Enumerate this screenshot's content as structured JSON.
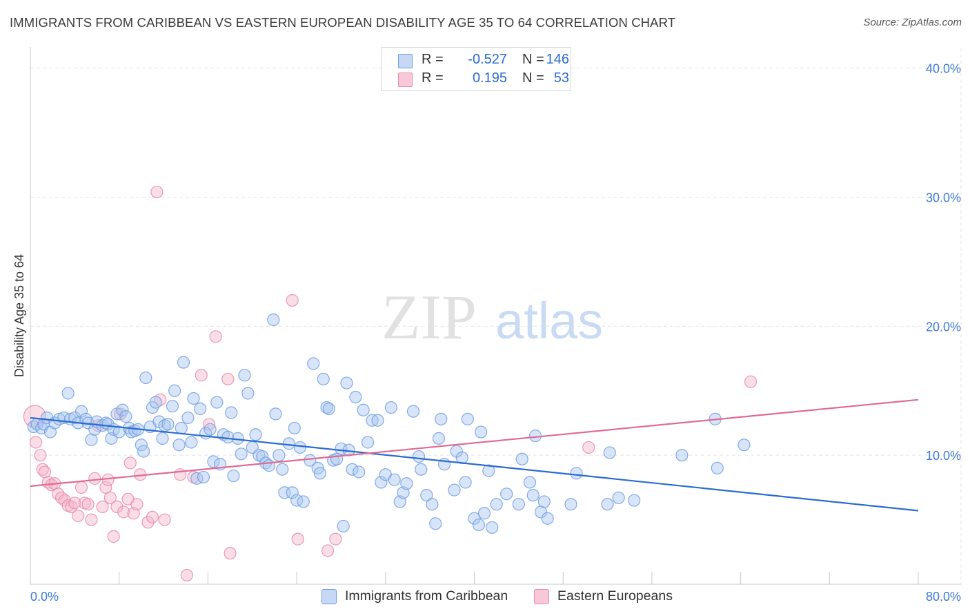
{
  "title": "IMMIGRANTS FROM CARIBBEAN VS EASTERN EUROPEAN DISABILITY AGE 35 TO 64 CORRELATION CHART",
  "source": "Source: ZipAtlas.com",
  "watermark": {
    "part1": "ZIP",
    "part2": "atlas"
  },
  "legend": {
    "series1": {
      "r_label": "R =",
      "r_value": "-0.527",
      "n_label": "N =",
      "n_value": "146"
    },
    "series2": {
      "r_label": "R =",
      "r_value": "0.195",
      "n_label": "N =",
      "n_value": "53"
    }
  },
  "colors": {
    "blue_fill": "#a9c6ef",
    "blue_stroke": "#6e9fe0",
    "blue_line": "#2a6bd1",
    "pink_fill": "#f5b5ca",
    "pink_stroke": "#e88aab",
    "pink_line": "#e06a94",
    "tick_text": "#3d7bd6",
    "grid": "#e3e3e3"
  },
  "chart_data": {
    "type": "scatter",
    "title": "IMMIGRANTS FROM CARIBBEAN VS EASTERN EUROPEAN DISABILITY AGE 35 TO 64 CORRELATION CHART",
    "xlabel": "",
    "ylabel": "Disability Age 35 to 64",
    "xlim": [
      0,
      80
    ],
    "ylim": [
      0,
      41
    ],
    "x_tick_labels": [
      {
        "value": 0,
        "label": "0.0%"
      },
      {
        "value": 80,
        "label": "80.0%"
      }
    ],
    "y_tick_labels": [
      {
        "value": 10,
        "label": "10.0%"
      },
      {
        "value": 20,
        "label": "20.0%"
      },
      {
        "value": 30,
        "label": "30.0%"
      },
      {
        "value": 40,
        "label": "40.0%"
      }
    ],
    "x_minor_ticks": [
      8,
      16,
      24,
      32,
      40,
      48,
      56,
      64,
      72,
      80
    ],
    "legend_position": "top-center",
    "series": [
      {
        "name": "Immigrants from Caribbean",
        "color": "#6e9fe0",
        "r": -0.527,
        "n": 146,
        "trendline": {
          "x": [
            0,
            80
          ],
          "y": [
            12.9,
            5.7
          ]
        },
        "points": [
          [
            0.3,
            12.2
          ],
          [
            0.6,
            12.4
          ],
          [
            1.0,
            12.1
          ],
          [
            1.2,
            12.4
          ],
          [
            1.5,
            12.9
          ],
          [
            1.8,
            11.8
          ],
          [
            2.2,
            12.5
          ],
          [
            2.6,
            12.8
          ],
          [
            3.0,
            12.9
          ],
          [
            3.4,
            14.8
          ],
          [
            3.6,
            12.8
          ],
          [
            4.0,
            12.9
          ],
          [
            4.3,
            12.5
          ],
          [
            4.6,
            13.4
          ],
          [
            5.0,
            12.8
          ],
          [
            5.2,
            12.5
          ],
          [
            5.5,
            11.2
          ],
          [
            5.8,
            12.0
          ],
          [
            6.0,
            12.6
          ],
          [
            6.5,
            12.3
          ],
          [
            6.8,
            12.5
          ],
          [
            7.0,
            12.4
          ],
          [
            7.3,
            11.3
          ],
          [
            7.5,
            12.0
          ],
          [
            7.8,
            13.2
          ],
          [
            8.0,
            11.8
          ],
          [
            8.3,
            13.5
          ],
          [
            8.6,
            13.0
          ],
          [
            8.9,
            12.1
          ],
          [
            9.1,
            11.8
          ],
          [
            9.4,
            11.9
          ],
          [
            9.7,
            12.0
          ],
          [
            10.0,
            10.8
          ],
          [
            10.2,
            10.3
          ],
          [
            10.4,
            16.0
          ],
          [
            10.8,
            12.2
          ],
          [
            11.0,
            13.7
          ],
          [
            11.3,
            14.1
          ],
          [
            11.6,
            12.6
          ],
          [
            11.9,
            11.3
          ],
          [
            12.1,
            12.3
          ],
          [
            12.4,
            12.4
          ],
          [
            12.8,
            13.8
          ],
          [
            13.0,
            15.0
          ],
          [
            13.4,
            10.8
          ],
          [
            13.6,
            12.1
          ],
          [
            13.8,
            17.2
          ],
          [
            14.2,
            12.9
          ],
          [
            14.5,
            11.0
          ],
          [
            14.7,
            14.4
          ],
          [
            15.0,
            8.2
          ],
          [
            15.3,
            13.6
          ],
          [
            15.6,
            8.3
          ],
          [
            15.8,
            11.7
          ],
          [
            16.2,
            12.0
          ],
          [
            16.5,
            9.5
          ],
          [
            16.8,
            14.1
          ],
          [
            17.1,
            9.3
          ],
          [
            17.4,
            11.6
          ],
          [
            17.8,
            11.4
          ],
          [
            18.1,
            13.3
          ],
          [
            18.3,
            8.4
          ],
          [
            18.7,
            11.3
          ],
          [
            19.0,
            10.1
          ],
          [
            19.3,
            16.2
          ],
          [
            19.6,
            14.8
          ],
          [
            20.0,
            10.6
          ],
          [
            20.3,
            11.6
          ],
          [
            20.6,
            10.0
          ],
          [
            20.9,
            9.9
          ],
          [
            21.2,
            9.4
          ],
          [
            21.5,
            9.2
          ],
          [
            21.9,
            20.5
          ],
          [
            22.1,
            13.2
          ],
          [
            22.4,
            10.0
          ],
          [
            22.7,
            8.9
          ],
          [
            22.9,
            7.1
          ],
          [
            23.3,
            10.9
          ],
          [
            23.6,
            7.1
          ],
          [
            23.8,
            12.1
          ],
          [
            24.0,
            6.5
          ],
          [
            24.3,
            10.6
          ],
          [
            24.6,
            6.4
          ],
          [
            25.2,
            9.6
          ],
          [
            25.5,
            17.1
          ],
          [
            25.9,
            9.0
          ],
          [
            26.1,
            8.6
          ],
          [
            26.4,
            15.9
          ],
          [
            26.7,
            13.7
          ],
          [
            26.9,
            13.6
          ],
          [
            27.3,
            9.6
          ],
          [
            27.6,
            9.7
          ],
          [
            28.0,
            10.5
          ],
          [
            28.2,
            4.5
          ],
          [
            28.5,
            15.6
          ],
          [
            28.7,
            10.4
          ],
          [
            29.0,
            8.9
          ],
          [
            29.3,
            14.5
          ],
          [
            29.6,
            8.7
          ],
          [
            30.0,
            13.5
          ],
          [
            30.4,
            11.0
          ],
          [
            30.8,
            12.7
          ],
          [
            31.3,
            12.7
          ],
          [
            31.6,
            7.9
          ],
          [
            32.0,
            8.5
          ],
          [
            32.5,
            13.7
          ],
          [
            32.8,
            8.1
          ],
          [
            33.3,
            6.4
          ],
          [
            33.6,
            7.1
          ],
          [
            33.9,
            7.8
          ],
          [
            34.5,
            13.4
          ],
          [
            35.0,
            9.9
          ],
          [
            35.2,
            8.9
          ],
          [
            35.7,
            6.9
          ],
          [
            36.2,
            6.2
          ],
          [
            36.5,
            4.7
          ],
          [
            36.8,
            11.3
          ],
          [
            37.0,
            12.8
          ],
          [
            37.3,
            9.3
          ],
          [
            38.2,
            7.3
          ],
          [
            38.4,
            10.3
          ],
          [
            38.9,
            9.8
          ],
          [
            39.2,
            7.9
          ],
          [
            39.4,
            12.8
          ],
          [
            40.0,
            5.1
          ],
          [
            40.4,
            4.6
          ],
          [
            40.6,
            11.8
          ],
          [
            40.9,
            5.5
          ],
          [
            41.3,
            8.8
          ],
          [
            41.6,
            4.4
          ],
          [
            42.0,
            6.2
          ],
          [
            42.9,
            7.0
          ],
          [
            44.0,
            6.2
          ],
          [
            44.3,
            9.7
          ],
          [
            45.0,
            7.9
          ],
          [
            45.3,
            6.9
          ],
          [
            45.5,
            11.5
          ],
          [
            46.0,
            5.6
          ],
          [
            46.3,
            6.4
          ],
          [
            46.6,
            5.1
          ],
          [
            48.7,
            6.2
          ],
          [
            49.2,
            8.6
          ],
          [
            52.0,
            6.2
          ],
          [
            52.2,
            10.2
          ],
          [
            53.0,
            6.7
          ],
          [
            54.4,
            6.5
          ],
          [
            58.7,
            10.0
          ],
          [
            61.7,
            12.8
          ],
          [
            61.9,
            9.0
          ],
          [
            64.3,
            10.8
          ]
        ]
      },
      {
        "name": "Eastern Europeans",
        "color": "#e88aab",
        "r": 0.195,
        "n": 53,
        "trendline": {
          "x": [
            0,
            80
          ],
          "y": [
            7.6,
            14.3
          ]
        },
        "points": [
          [
            0.4,
            13.0
          ],
          [
            0.5,
            11.0
          ],
          [
            0.9,
            10.0
          ],
          [
            1.1,
            8.9
          ],
          [
            1.3,
            8.7
          ],
          [
            1.6,
            7.9
          ],
          [
            1.9,
            7.7
          ],
          [
            2.2,
            7.8
          ],
          [
            2.5,
            7.0
          ],
          [
            2.8,
            6.7
          ],
          [
            3.1,
            6.5
          ],
          [
            3.4,
            6.1
          ],
          [
            3.7,
            6.0
          ],
          [
            4.0,
            6.3
          ],
          [
            4.3,
            5.3
          ],
          [
            4.6,
            7.5
          ],
          [
            4.9,
            6.3
          ],
          [
            5.2,
            6.2
          ],
          [
            5.5,
            5.0
          ],
          [
            5.8,
            8.2
          ],
          [
            6.1,
            12.3
          ],
          [
            6.5,
            6.0
          ],
          [
            6.8,
            7.5
          ],
          [
            7.0,
            8.1
          ],
          [
            7.2,
            6.7
          ],
          [
            7.5,
            3.7
          ],
          [
            7.8,
            6.0
          ],
          [
            8.1,
            13.2
          ],
          [
            8.4,
            5.6
          ],
          [
            8.8,
            6.6
          ],
          [
            9.0,
            9.4
          ],
          [
            9.3,
            5.5
          ],
          [
            9.6,
            6.2
          ],
          [
            9.9,
            8.5
          ],
          [
            10.6,
            4.8
          ],
          [
            11.0,
            5.2
          ],
          [
            11.4,
            30.4
          ],
          [
            11.7,
            14.3
          ],
          [
            12.1,
            5.0
          ],
          [
            13.5,
            8.5
          ],
          [
            14.1,
            0.7
          ],
          [
            14.7,
            8.3
          ],
          [
            15.4,
            16.2
          ],
          [
            16.1,
            12.4
          ],
          [
            16.7,
            19.2
          ],
          [
            17.8,
            15.9
          ],
          [
            18.0,
            2.4
          ],
          [
            23.6,
            22.0
          ],
          [
            24.1,
            3.5
          ],
          [
            26.8,
            2.6
          ],
          [
            27.5,
            3.5
          ],
          [
            50.3,
            10.6
          ],
          [
            64.9,
            15.7
          ]
        ]
      }
    ]
  },
  "bottom_legend": {
    "series1": "Immigrants from Caribbean",
    "series2": "Eastern Europeans"
  }
}
